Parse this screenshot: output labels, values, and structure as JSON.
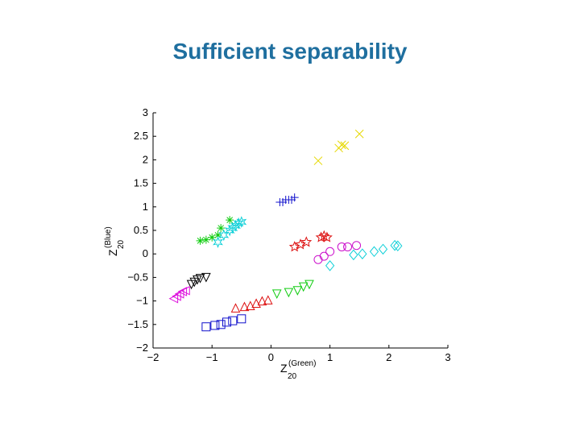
{
  "slide": {
    "title": "Sufficient separability"
  },
  "chart_data": {
    "type": "scatter",
    "title": "",
    "xlabel": {
      "symbol": "Z",
      "subscript": "20",
      "superscript": "(Green)"
    },
    "ylabel": {
      "symbol": "Z",
      "subscript": "20",
      "superscript": "(Blue)"
    },
    "xlim": [
      -2,
      3
    ],
    "ylim": [
      -2,
      3
    ],
    "xticks": [
      -2,
      -1,
      0,
      1,
      2,
      3
    ],
    "xtick_labels": [
      "−2",
      "−1",
      "0",
      "1",
      "2",
      "3"
    ],
    "yticks": [
      -2,
      -1.5,
      -1,
      -0.5,
      0,
      0.5,
      1,
      1.5,
      2,
      2.5,
      3
    ],
    "ytick_labels": [
      "−2",
      "−1.5",
      "−1",
      "−0.5",
      "0",
      "0.5",
      "1",
      "1.5",
      "2",
      "2.5",
      "3"
    ],
    "grid": false,
    "series": [
      {
        "marker": "x",
        "color": "#e6d800",
        "points": [
          [
            0.8,
            1.98
          ],
          [
            1.15,
            2.25
          ],
          [
            1.2,
            2.32
          ],
          [
            1.25,
            2.3
          ],
          [
            1.5,
            2.55
          ]
        ]
      },
      {
        "marker": "plus",
        "color": "#1010cc",
        "points": [
          [
            0.15,
            1.1
          ],
          [
            0.2,
            1.1
          ],
          [
            0.25,
            1.15
          ],
          [
            0.3,
            1.15
          ],
          [
            0.35,
            1.15
          ],
          [
            0.4,
            1.2
          ]
        ]
      },
      {
        "marker": "asterisk",
        "color": "#10cc10",
        "points": [
          [
            -1.2,
            0.28
          ],
          [
            -1.1,
            0.3
          ],
          [
            -1.0,
            0.35
          ],
          [
            -0.9,
            0.4
          ],
          [
            -0.85,
            0.55
          ],
          [
            -0.7,
            0.72
          ]
        ]
      },
      {
        "marker": "hexagram",
        "color": "#10d0d8",
        "points": [
          [
            -0.9,
            0.25
          ],
          [
            -0.8,
            0.4
          ],
          [
            -0.7,
            0.5
          ],
          [
            -0.65,
            0.55
          ],
          [
            -0.6,
            0.6
          ],
          [
            -0.55,
            0.65
          ],
          [
            -0.5,
            0.68
          ]
        ]
      },
      {
        "marker": "pentagram",
        "color": "#dd1010",
        "points": [
          [
            0.4,
            0.15
          ],
          [
            0.5,
            0.2
          ],
          [
            0.6,
            0.25
          ],
          [
            0.85,
            0.35
          ],
          [
            0.9,
            0.38
          ],
          [
            0.95,
            0.35
          ]
        ]
      },
      {
        "marker": "circle",
        "color": "#cc10cc",
        "points": [
          [
            0.8,
            -0.12
          ],
          [
            0.9,
            -0.05
          ],
          [
            1.0,
            0.05
          ],
          [
            1.2,
            0.15
          ],
          [
            1.3,
            0.15
          ],
          [
            1.45,
            0.18
          ]
        ]
      },
      {
        "marker": "diamond",
        "color": "#10d0d8",
        "points": [
          [
            1.4,
            -0.02
          ],
          [
            1.55,
            0.0
          ],
          [
            1.75,
            0.05
          ],
          [
            1.9,
            0.1
          ],
          [
            2.1,
            0.18
          ],
          [
            2.15,
            0.17
          ],
          [
            1.0,
            -0.25
          ]
        ]
      },
      {
        "marker": "triangle-down",
        "color": "#10cc10",
        "points": [
          [
            0.1,
            -0.85
          ],
          [
            0.3,
            -0.82
          ],
          [
            0.45,
            -0.78
          ],
          [
            0.55,
            -0.7
          ],
          [
            0.65,
            -0.65
          ]
        ]
      },
      {
        "marker": "triangle-down",
        "color": "#000000",
        "points": [
          [
            -1.35,
            -0.65
          ],
          [
            -1.3,
            -0.6
          ],
          [
            -1.25,
            -0.55
          ],
          [
            -1.2,
            -0.52
          ],
          [
            -1.1,
            -0.5
          ]
        ]
      },
      {
        "marker": "triangle-left",
        "color": "#dd10dd",
        "points": [
          [
            -1.65,
            -0.95
          ],
          [
            -1.6,
            -0.9
          ],
          [
            -1.55,
            -0.85
          ],
          [
            -1.5,
            -0.8
          ],
          [
            -1.45,
            -0.78
          ]
        ]
      },
      {
        "marker": "triangle-up",
        "color": "#dd1010",
        "points": [
          [
            -0.6,
            -1.15
          ],
          [
            -0.45,
            -1.12
          ],
          [
            -0.35,
            -1.1
          ],
          [
            -0.25,
            -1.05
          ],
          [
            -0.15,
            -1.0
          ],
          [
            -0.05,
            -0.98
          ]
        ]
      },
      {
        "marker": "square",
        "color": "#1010cc",
        "points": [
          [
            -1.1,
            -1.55
          ],
          [
            -0.95,
            -1.52
          ],
          [
            -0.85,
            -1.5
          ],
          [
            -0.75,
            -1.45
          ],
          [
            -0.65,
            -1.42
          ],
          [
            -0.5,
            -1.38
          ]
        ]
      }
    ]
  }
}
